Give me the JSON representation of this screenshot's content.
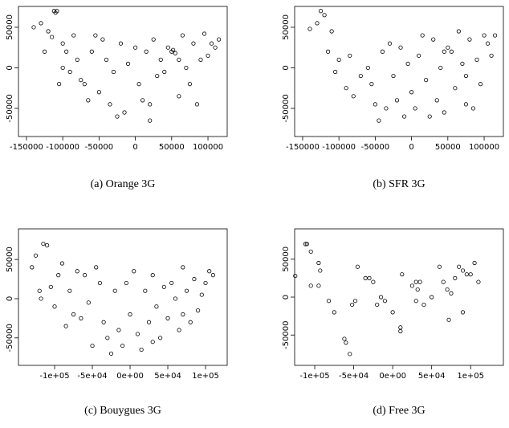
{
  "chart_data": [
    {
      "type": "scatter",
      "caption": "(a) Orange 3G",
      "marker_color": "#000000",
      "x": [
        -112000,
        -110000,
        -108000,
        -130000,
        -140000,
        -120000,
        -115000,
        -100000,
        -95000,
        -85000,
        -80000,
        -90000,
        -75000,
        -70000,
        -105000,
        -60000,
        -55000,
        -45000,
        -40000,
        -30000,
        -50000,
        -35000,
        -25000,
        -15000,
        -10000,
        0,
        5000,
        10000,
        20000,
        15000,
        25000,
        30000,
        35000,
        40000,
        45000,
        50000,
        55000,
        52000,
        60000,
        65000,
        70000,
        75000,
        80000,
        85000,
        90000,
        95000,
        100000,
        105000,
        110000,
        115000,
        -125000,
        -100000,
        -20000,
        20000,
        60000,
        -65000
      ],
      "y": [
        70000,
        68000,
        70000,
        55000,
        50000,
        45000,
        38000,
        30000,
        20000,
        40000,
        10000,
        -5000,
        -15000,
        -20000,
        -20000,
        20000,
        40000,
        35000,
        10000,
        -5000,
        -30000,
        -45000,
        -60000,
        -55000,
        5000,
        25000,
        -20000,
        -40000,
        -45000,
        20000,
        35000,
        -10000,
        10000,
        -5000,
        25000,
        20000,
        18000,
        22000,
        -35000,
        40000,
        0,
        -20000,
        30000,
        -45000,
        10000,
        42000,
        15000,
        30000,
        25000,
        35000,
        20000,
        0,
        30000,
        -65000,
        10000,
        -40000
      ],
      "xlim": [
        -161000,
        126500
      ],
      "ylim": [
        -84700,
        75700
      ],
      "xticks": [
        -150000,
        -100000,
        -50000,
        0,
        50000,
        100000
      ],
      "yticks": [
        -50000,
        0,
        50000
      ]
    },
    {
      "type": "scatter",
      "caption": "(b) SFR 3G",
      "marker_color": "#000000",
      "x": [
        -125000,
        -120000,
        -130000,
        -140000,
        -110000,
        -115000,
        -100000,
        -105000,
        -90000,
        -80000,
        -85000,
        -70000,
        -60000,
        -55000,
        -50000,
        -45000,
        -40000,
        -30000,
        -25000,
        -20000,
        -10000,
        -5000,
        0,
        5000,
        10000,
        15000,
        20000,
        25000,
        30000,
        35000,
        40000,
        45000,
        50000,
        55000,
        60000,
        65000,
        70000,
        75000,
        80000,
        85000,
        90000,
        95000,
        100000,
        105000,
        110000,
        115000,
        -35000,
        -15000,
        45000,
        75000
      ],
      "y": [
        70000,
        65000,
        55000,
        48000,
        45000,
        20000,
        10000,
        -5000,
        -25000,
        -35000,
        15000,
        -10000,
        0,
        -20000,
        -45000,
        -65000,
        20000,
        30000,
        -10000,
        -40000,
        -60000,
        5000,
        -30000,
        -50000,
        15000,
        40000,
        -15000,
        -60000,
        35000,
        -40000,
        0,
        20000,
        25000,
        20000,
        -25000,
        45000,
        5000,
        -10000,
        35000,
        -50000,
        10000,
        -20000,
        40000,
        30000,
        15000,
        40000,
        -50000,
        25000,
        -55000,
        -45000
      ],
      "xlim": [
        -161000,
        126500
      ],
      "ylim": [
        -84700,
        75700
      ],
      "xticks": [
        -150000,
        -100000,
        -50000,
        0,
        50000,
        100000
      ],
      "yticks": [
        -50000,
        0,
        50000
      ]
    },
    {
      "type": "scatter",
      "caption": "(c) Bouygues 3G",
      "marker_color": "#000000",
      "x": [
        -115000,
        -110000,
        -125000,
        -130000,
        -120000,
        -118000,
        -105000,
        -100000,
        -95000,
        -90000,
        -80000,
        -75000,
        -70000,
        -65000,
        -55000,
        -50000,
        -45000,
        -40000,
        -35000,
        -30000,
        -25000,
        -20000,
        -15000,
        -10000,
        -5000,
        0,
        5000,
        10000,
        15000,
        20000,
        25000,
        30000,
        35000,
        40000,
        45000,
        50000,
        55000,
        60000,
        65000,
        70000,
        75000,
        80000,
        85000,
        90000,
        95000,
        100000,
        105000,
        110000,
        -85000,
        -60000,
        30000,
        70000
      ],
      "y": [
        70000,
        68000,
        55000,
        40000,
        10000,
        0,
        15000,
        -10000,
        30000,
        45000,
        10000,
        -20000,
        35000,
        -25000,
        -5000,
        -60000,
        40000,
        20000,
        -30000,
        -50000,
        -70000,
        10000,
        -40000,
        -60000,
        20000,
        -20000,
        35000,
        -45000,
        -65000,
        10000,
        -30000,
        30000,
        -10000,
        -50000,
        15000,
        -25000,
        20000,
        0,
        -40000,
        40000,
        10000,
        -30000,
        25000,
        -15000,
        5000,
        20000,
        35000,
        30000,
        -35000,
        30000,
        -55000,
        -20000
      ],
      "xlim": [
        -147900,
        128700
      ],
      "ylim": [
        -85000,
        89000
      ],
      "xticks": [
        {
          "value": -100000,
          "label": "-1e+05"
        },
        {
          "value": -50000,
          "label": "-5e+04"
        },
        {
          "value": 0,
          "label": "0e+00"
        },
        {
          "value": 50000,
          "label": "5e+04"
        },
        {
          "value": 100000,
          "label": "1e+05"
        }
      ],
      "yticks": [
        -50000,
        0,
        50000
      ]
    },
    {
      "type": "scatter",
      "caption": "(d) Free 3G",
      "marker_color": "#000000",
      "x": [
        -112000,
        -110000,
        -125000,
        -105000,
        -95000,
        -93000,
        -95000,
        -105000,
        -82000,
        -75000,
        -62000,
        -60000,
        -55000,
        -52000,
        -48000,
        -45000,
        -35000,
        -30000,
        -25000,
        -20000,
        -15000,
        -10000,
        0,
        10000,
        10000,
        12000,
        25000,
        30000,
        35000,
        32000,
        30000,
        40000,
        50000,
        60000,
        65000,
        70000,
        72000,
        75000,
        80000,
        85000,
        90000,
        95000,
        100000,
        105000,
        110000,
        90000
      ],
      "y": [
        70000,
        70000,
        28000,
        60000,
        45000,
        35000,
        15000,
        15000,
        -5000,
        -20000,
        -55000,
        -60000,
        -75000,
        -10000,
        -5000,
        40000,
        25000,
        25000,
        20000,
        -10000,
        0,
        -5000,
        -20000,
        -40000,
        -45000,
        30000,
        15000,
        20000,
        20000,
        10000,
        -5000,
        -10000,
        0,
        40000,
        20000,
        10000,
        -30000,
        5000,
        25000,
        40000,
        35000,
        30000,
        30000,
        45000,
        20000,
        -20000
      ],
      "xlim": [
        -125800,
        142000
      ],
      "ylim": [
        -90000,
        90000
      ],
      "xticks": [
        {
          "value": -100000,
          "label": "-1e+05"
        },
        {
          "value": -50000,
          "label": "-5e+04"
        },
        {
          "value": 0,
          "label": "0e+00"
        },
        {
          "value": 50000,
          "label": "5e+04"
        },
        {
          "value": 100000,
          "label": "1e+05"
        }
      ],
      "yticks": [
        -50000,
        0,
        50000
      ]
    }
  ]
}
